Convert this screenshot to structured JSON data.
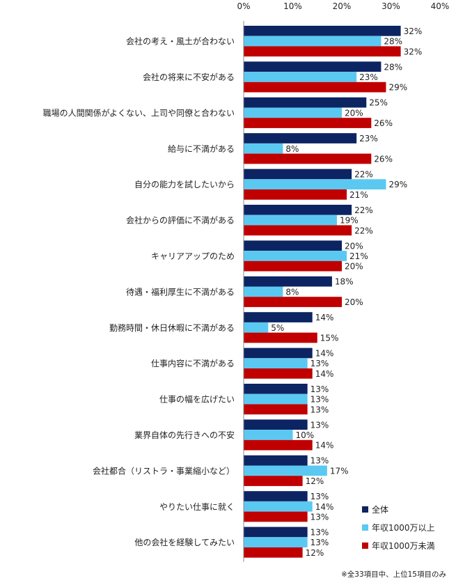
{
  "chart_data": {
    "type": "bar",
    "orientation": "horizontal",
    "xlim": [
      0,
      40
    ],
    "x_ticks": [
      "0%",
      "10%",
      "20%",
      "30%",
      "40%"
    ],
    "categories": [
      "会社の考え・風土が合わない",
      "会社の将来に不安がある",
      "職場の人間関係がよくない、上司や同僚と合わない",
      "給与に不満がある",
      "自分の能力を試したいから",
      "会社からの評価に不満がある",
      "キャリアアップのため",
      "待遇・福利厚生に不満がある",
      "勤務時間・休日休暇に不満がある",
      "仕事内容に不満がある",
      "仕事の幅を広げたい",
      "業界自体の先行きへの不安",
      "会社都合（リストラ・事業縮小など）",
      "やりたい仕事に就く",
      "他の会社を経験してみたい"
    ],
    "series": [
      {
        "name": "全体",
        "color": "#0d2463",
        "values": [
          32,
          28,
          25,
          23,
          22,
          22,
          20,
          18,
          14,
          14,
          13,
          13,
          13,
          13,
          13
        ],
        "labels": [
          "32%",
          "28%",
          "25%",
          "23%",
          "22%",
          "22%",
          "20%",
          "18%",
          "14%",
          "14%",
          "13%",
          "13%",
          "13%",
          "13%",
          "13%"
        ]
      },
      {
        "name": "年収1000万以上",
        "color": "#5bc8f2",
        "values": [
          28,
          23,
          20,
          8,
          29,
          19,
          21,
          8,
          5,
          13,
          13,
          10,
          17,
          14,
          13
        ],
        "labels": [
          "28%",
          "23%",
          "20%",
          "8%",
          "29%",
          "19%",
          "21%",
          "8%",
          "5%",
          "13%",
          "13%",
          "10%",
          "17%",
          "14%",
          "13%"
        ]
      },
      {
        "name": "年収1000万未満",
        "color": "#c00000",
        "values": [
          32,
          29,
          26,
          26,
          21,
          22,
          20,
          20,
          15,
          14,
          13,
          14,
          12,
          13,
          12
        ],
        "labels": [
          "32%",
          "29%",
          "26%",
          "26%",
          "21%",
          "22%",
          "20%",
          "20%",
          "15%",
          "14%",
          "13%",
          "14%",
          "12%",
          "13%",
          "12%"
        ]
      }
    ],
    "legend_position": "bottom-right",
    "note": "※全33項目中、上位15項目のみ"
  }
}
